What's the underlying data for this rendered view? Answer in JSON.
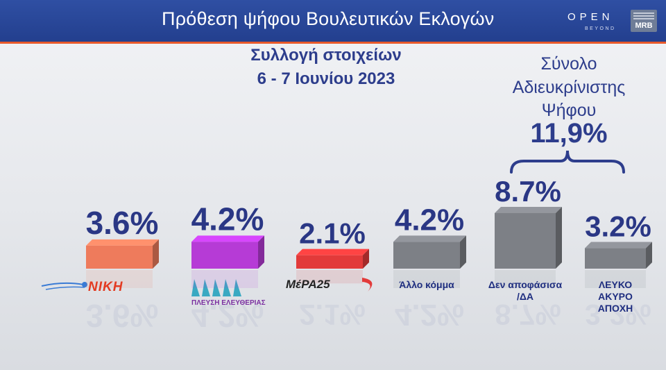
{
  "header": {
    "title": "Πρόθεση ψήφου Βουλευτικών Εκλογών",
    "brand_open": "OPEN",
    "brand_open_sub": "BEYOND",
    "brand_mrb": "MRB"
  },
  "subtitle": {
    "line1": "Συλλογή στοιχείων",
    "line2": "6 - 7 Ιουνίου 2023"
  },
  "summary": {
    "line1": "Σύνολο",
    "line2": "Αδιευκρίνιστης",
    "line3": "Ψήφου",
    "value": "11,9%"
  },
  "logos": {
    "niki": "ΝΙΚΗ",
    "plefsi": "ΠΛΕΥΣΗ ΕΛΕΥΘΕΡΙΑΣ",
    "mera": "ΜέΡΑ25"
  },
  "colors": {
    "header": "#2a479c",
    "accent": "#e8592b",
    "text": "#2d3d8c",
    "niki": "#ee7b5c",
    "plefsi": "#b63bd6",
    "mera": "#e23a3a",
    "grey": "#7d8086"
  },
  "chart_data": {
    "type": "bar",
    "categories": [
      "ΝΙΚΗ",
      "ΠΛΕΥΣΗ ΕΛΕΥΘΕΡΙΑΣ",
      "ΜέΡΑ25",
      "Άλλο κόμμα",
      "Δεν αποφάσισα /ΔΑ",
      "ΛΕΥΚΟ ΑΚΥΡΟ ΑΠΟΧΗ"
    ],
    "values": [
      3.6,
      4.2,
      2.1,
      4.2,
      8.7,
      3.2
    ],
    "value_labels": [
      "3.6%",
      "4.2%",
      "2.1%",
      "4.2%",
      "8.7%",
      "3.2%"
    ],
    "text_labels": [
      "",
      "",
      "",
      "Άλλο κόμμα",
      "Δεν αποφάσισα\n/ΔΑ",
      "ΛΕΥΚΟ\nΑΚΥΡΟ\nΑΠΟΧΗ"
    ],
    "bar_colors": [
      "#ee7b5c",
      "#b63bd6",
      "#e23a3a",
      "#7d8086",
      "#7d8086",
      "#7d8086"
    ]
  }
}
